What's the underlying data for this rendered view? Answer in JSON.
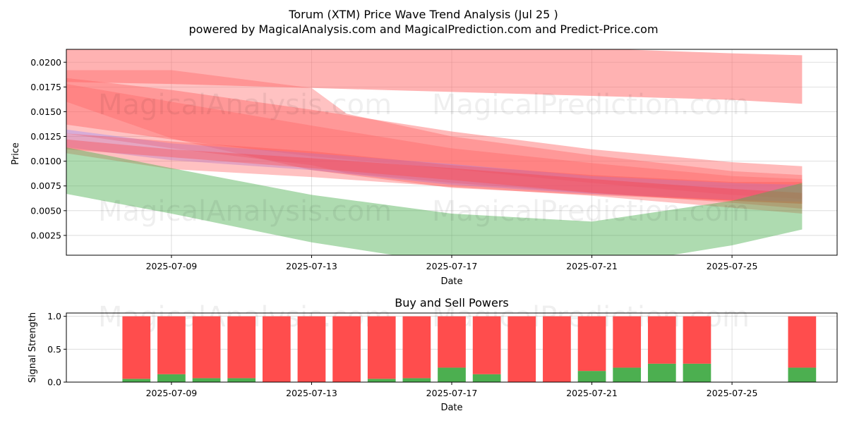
{
  "chart_data": [
    {
      "type": "area",
      "title_line1": "Torum (XTM) Price Wave Trend Analysis (Jul 25 )",
      "title_line2": "powered by MagicalAnalysis.com and MagicalPrediction.com and Predict-Price.com",
      "xlabel": "Date",
      "ylabel": "Price",
      "x_range": [
        "2025-07-06",
        "2025-07-28"
      ],
      "ylim": [
        0.0005,
        0.0213
      ],
      "x_ticks": [
        "2025-07-09",
        "2025-07-13",
        "2025-07-17",
        "2025-07-21",
        "2025-07-25"
      ],
      "y_ticks": [
        0.0025,
        0.005,
        0.0075,
        0.01,
        0.0125,
        0.015,
        0.0175,
        0.02
      ],
      "y_tick_labels": [
        "0.0025",
        "0.0050",
        "0.0075",
        "0.0100",
        "0.0125",
        "0.0150",
        "0.0175",
        "0.0200"
      ],
      "grid": true,
      "watermarks": [
        "MagicalAnalysis.com",
        "MagicalPrediction.com",
        "MagicalAnalysis.com",
        "MagicalPrediction.com"
      ],
      "bands": [
        {
          "name": "red-band-top",
          "color": "#ff6666",
          "opacity": 0.5,
          "x": [
            "2025-07-06",
            "2025-07-09",
            "2025-07-13",
            "2025-07-17",
            "2025-07-21",
            "2025-07-25",
            "2025-07-27"
          ],
          "upper": [
            0.0215,
            0.0215,
            0.0215,
            0.0216,
            0.0214,
            0.0209,
            0.0207
          ],
          "lower": [
            0.018,
            0.0178,
            0.0174,
            0.017,
            0.0166,
            0.0162,
            0.0158
          ]
        },
        {
          "name": "red-band-wide",
          "color": "#ff6666",
          "opacity": 0.45,
          "x": [
            "2025-07-06",
            "2025-07-09",
            "2025-07-13",
            "2025-07-17",
            "2025-07-21",
            "2025-07-25",
            "2025-07-27"
          ],
          "upper": [
            0.0184,
            0.0172,
            0.0152,
            0.013,
            0.0112,
            0.0099,
            0.0095
          ],
          "lower": [
            0.0137,
            0.0122,
            0.0105,
            0.0092,
            0.0078,
            0.0066,
            0.0062
          ]
        },
        {
          "name": "red-band-2",
          "color": "#ff6666",
          "opacity": 0.4,
          "x": [
            "2025-07-06",
            "2025-07-09",
            "2025-07-13",
            "2025-07-14",
            "2025-07-17",
            "2025-07-21",
            "2025-07-25",
            "2025-07-27"
          ],
          "upper": [
            0.0192,
            0.0192,
            0.0174,
            0.0148,
            0.0125,
            0.0106,
            0.009,
            0.0086
          ],
          "lower": [
            0.0128,
            0.0113,
            0.0096,
            0.0088,
            0.0078,
            0.0068,
            0.006,
            0.0057
          ]
        },
        {
          "name": "red-band-3",
          "color": "#ff6666",
          "opacity": 0.4,
          "x": [
            "2025-07-06",
            "2025-07-09",
            "2025-07-13",
            "2025-07-17",
            "2025-07-21",
            "2025-07-25",
            "2025-07-27"
          ],
          "upper": [
            0.0178,
            0.016,
            0.0136,
            0.0113,
            0.0098,
            0.0085,
            0.0082
          ],
          "lower": [
            0.016,
            0.0123,
            0.0091,
            0.0073,
            0.0066,
            0.006,
            0.0057
          ]
        },
        {
          "name": "purple-band",
          "color": "#8c83ff",
          "opacity": 0.35,
          "x": [
            "2025-07-06",
            "2025-07-09",
            "2025-07-13",
            "2025-07-17",
            "2025-07-21",
            "2025-07-25",
            "2025-07-27"
          ],
          "upper": [
            0.0132,
            0.0118,
            0.0108,
            0.0097,
            0.0085,
            0.0078,
            0.0076
          ],
          "lower": [
            0.0114,
            0.0101,
            0.0091,
            0.0076,
            0.0067,
            0.0061,
            0.0059
          ]
        },
        {
          "name": "red-band-4",
          "color": "#ff4d4d",
          "opacity": 0.35,
          "x": [
            "2025-07-06",
            "2025-07-09",
            "2025-07-13",
            "2025-07-17",
            "2025-07-21",
            "2025-07-25",
            "2025-07-27"
          ],
          "upper": [
            0.0128,
            0.012,
            0.011,
            0.0096,
            0.0086,
            0.0079,
            0.0079
          ],
          "lower": [
            0.0112,
            0.0104,
            0.0093,
            0.0081,
            0.0068,
            0.0058,
            0.0052
          ]
        },
        {
          "name": "red-band-5",
          "color": "#ff3333",
          "opacity": 0.3,
          "x": [
            "2025-07-06",
            "2025-07-09",
            "2025-07-13",
            "2025-07-17",
            "2025-07-21",
            "2025-07-25",
            "2025-07-27"
          ],
          "upper": [
            0.0122,
            0.0112,
            0.0103,
            0.0093,
            0.0082,
            0.0072,
            0.0068
          ],
          "lower": [
            0.0108,
            0.0092,
            0.0084,
            0.0074,
            0.0065,
            0.0053,
            0.0047
          ]
        },
        {
          "name": "green-band",
          "color": "#4caf50",
          "opacity": 0.45,
          "x": [
            "2025-07-06",
            "2025-07-09",
            "2025-07-13",
            "2025-07-17",
            "2025-07-21",
            "2025-07-25",
            "2025-07-27"
          ],
          "upper": [
            0.0114,
            0.0093,
            0.0066,
            0.0047,
            0.0039,
            0.006,
            0.0078
          ],
          "lower": [
            0.0067,
            0.0047,
            0.0018,
            -0.0004,
            -0.0008,
            0.0015,
            0.0031
          ]
        }
      ]
    },
    {
      "type": "bar",
      "title": "Buy and Sell Powers",
      "xlabel": "Date",
      "ylabel": "Signal Strength",
      "x_range": [
        "2025-07-06",
        "2025-07-28"
      ],
      "ylim": [
        0,
        1.05
      ],
      "y_ticks": [
        0.0,
        0.5,
        1.0
      ],
      "y_tick_labels": [
        "0.0",
        "0.5",
        "1.0"
      ],
      "x_ticks": [
        "2025-07-09",
        "2025-07-13",
        "2025-07-17",
        "2025-07-21",
        "2025-07-25"
      ],
      "grid": true,
      "watermarks": [
        "MagicalAnalysis.com",
        "MagicalPrediction.com"
      ],
      "categories": [
        "2025-07-08",
        "2025-07-09",
        "2025-07-10",
        "2025-07-11",
        "2025-07-12",
        "2025-07-13",
        "2025-07-14",
        "2025-07-15",
        "2025-07-16",
        "2025-07-17",
        "2025-07-18",
        "2025-07-19",
        "2025-07-20",
        "2025-07-21",
        "2025-07-22",
        "2025-07-23",
        "2025-07-24",
        "2025-07-27"
      ],
      "series": [
        {
          "name": "Buy",
          "color": "#4caf50",
          "values": [
            0.05,
            0.12,
            0.06,
            0.06,
            0.0,
            0.0,
            0.0,
            0.05,
            0.06,
            0.22,
            0.12,
            0.0,
            0.0,
            0.17,
            0.22,
            0.28,
            0.28,
            0.22
          ]
        },
        {
          "name": "Sell",
          "color": "#ff4d4d",
          "values": [
            0.95,
            0.88,
            0.94,
            0.94,
            1.0,
            1.0,
            1.0,
            0.95,
            0.94,
            0.78,
            0.88,
            1.0,
            1.0,
            0.83,
            0.78,
            0.72,
            0.72,
            0.78
          ]
        }
      ]
    }
  ]
}
